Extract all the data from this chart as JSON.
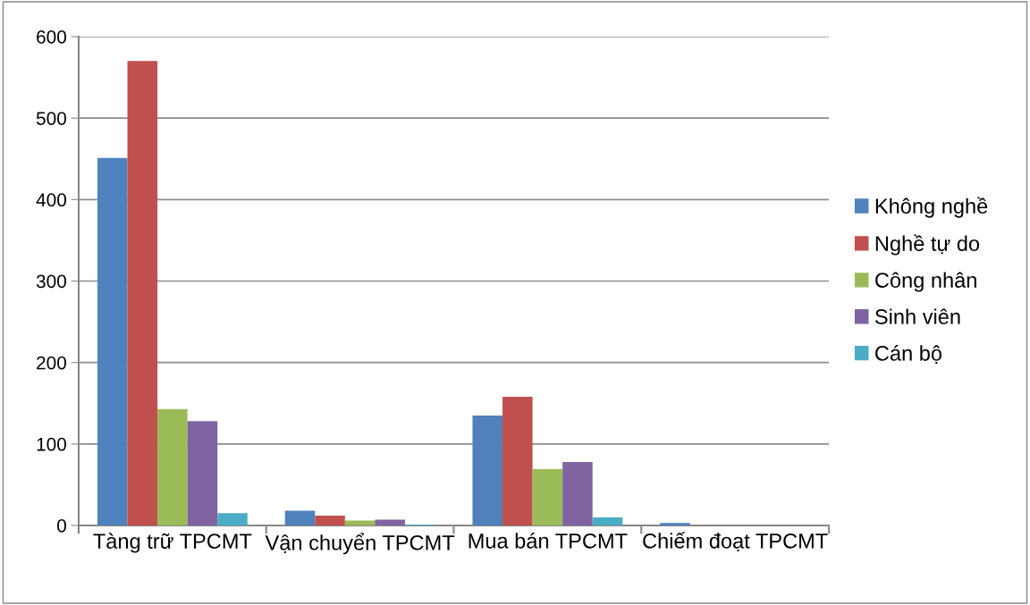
{
  "chart_data": {
    "type": "bar",
    "categories": [
      "Tàng trữ TPCMT",
      "Vận chuyển TPCMT",
      "Mua bán TPCMT",
      "Chiếm đoạt TPCMT"
    ],
    "series": [
      {
        "name": "Không nghề",
        "color": "#4f81bd",
        "values": [
          451,
          18,
          135,
          3
        ]
      },
      {
        "name": "Nghề tự do",
        "color": "#c0504d",
        "values": [
          570,
          12,
          158,
          null
        ]
      },
      {
        "name": "Công nhân",
        "color": "#9bbb59",
        "values": [
          143,
          6,
          69,
          null
        ]
      },
      {
        "name": "Sinh viên",
        "color": "#8064a2",
        "values": [
          128,
          7,
          78,
          0
        ]
      },
      {
        "name": "Cán bộ",
        "color": "#4bacc6",
        "values": [
          15,
          1,
          10,
          0
        ]
      }
    ],
    "ylim": [
      0,
      600
    ],
    "yticks": [
      0,
      100,
      200,
      300,
      400,
      500,
      600
    ],
    "grid": "y",
    "legend": "right"
  }
}
